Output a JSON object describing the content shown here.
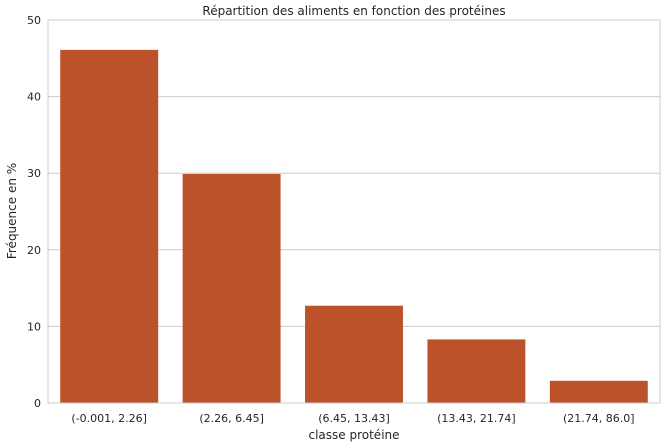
{
  "chart_data": {
    "type": "bar",
    "title": "Répartition des aliments en fonction des protéines",
    "xlabel": "classe protéine",
    "ylabel": "Fréquence en %",
    "categories": [
      "(-0.001, 2.26]",
      "(2.26, 6.45]",
      "(6.45, 13.43]",
      "(13.43, 21.74]",
      "(21.74, 86.0]"
    ],
    "values": [
      46.1,
      29.9,
      12.7,
      8.3,
      2.9
    ],
    "ylim": [
      0,
      50
    ],
    "yticks": [
      0,
      10,
      20,
      30,
      40,
      50
    ],
    "grid": "horizontal",
    "bar_color": "#bb5229",
    "grid_color": "#cccccc",
    "frame_color": "#cccccc"
  }
}
